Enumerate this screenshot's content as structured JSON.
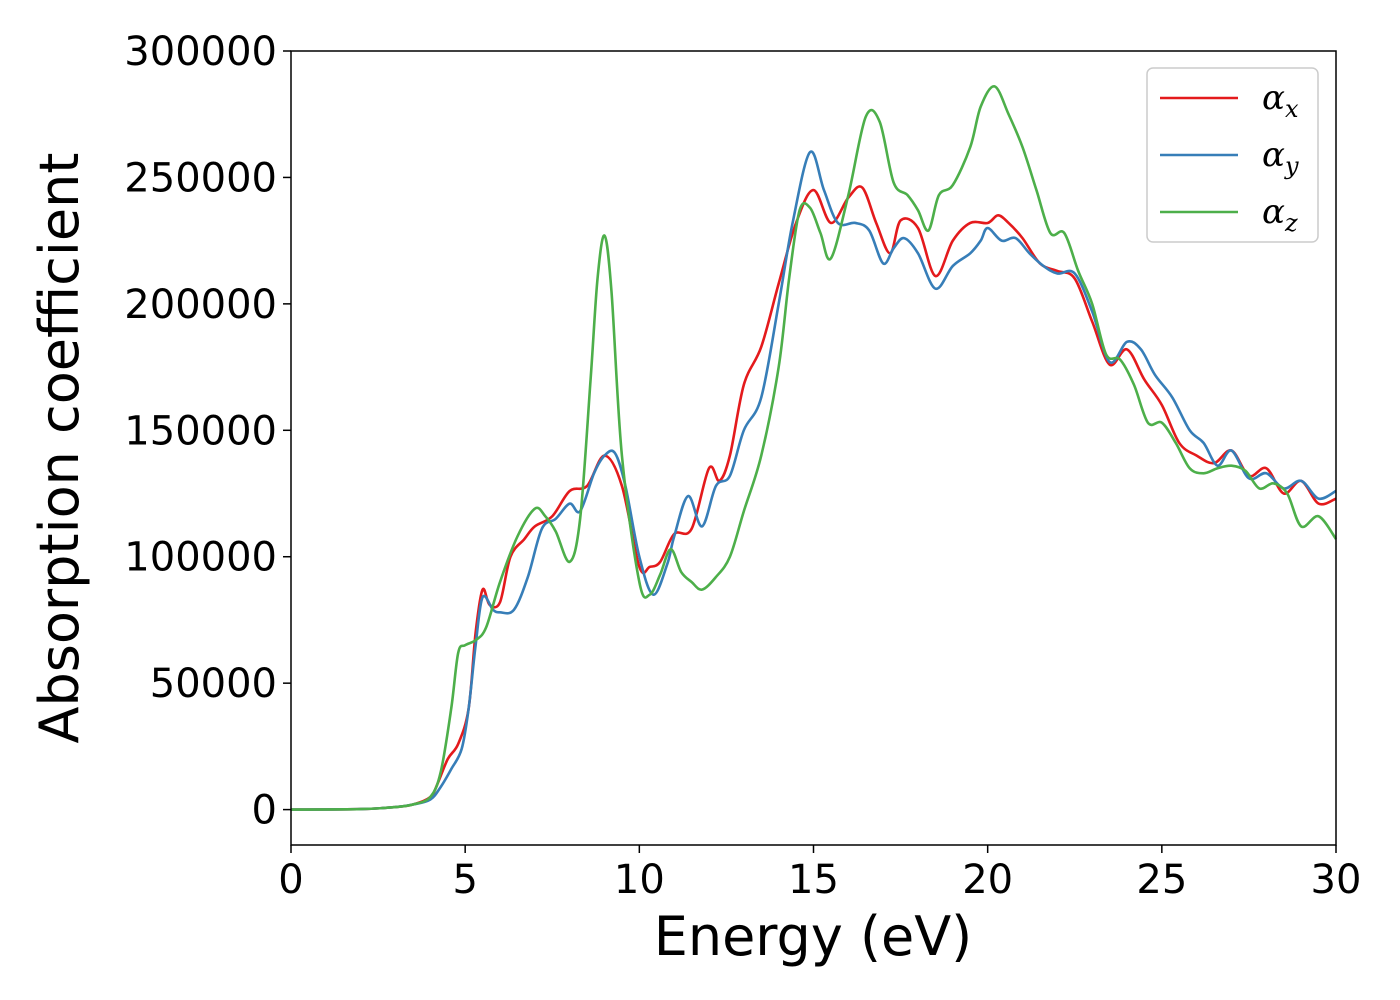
{
  "chart_data": {
    "type": "line",
    "title": "",
    "xlabel": "Energy (eV)",
    "ylabel": "Absorption coefficient",
    "xlim": [
      0,
      30
    ],
    "ylim": [
      -14000,
      300000
    ],
    "xticks": [
      0,
      5,
      10,
      15,
      20,
      25,
      30
    ],
    "yticks": [
      0,
      50000,
      100000,
      150000,
      200000,
      250000,
      300000
    ],
    "xtick_labels": [
      "0",
      "5",
      "10",
      "15",
      "20",
      "25",
      "30"
    ],
    "ytick_labels": [
      "0",
      "50000",
      "100000",
      "150000",
      "200000",
      "250000",
      "300000"
    ],
    "grid": false,
    "legend_position": "top-right",
    "series": [
      {
        "name": "α",
        "subscript": "x",
        "color": "#e41a1c",
        "x": [
          0,
          2,
          3,
          3.5,
          4,
          4.2,
          4.5,
          4.8,
          5.1,
          5.3,
          5.5,
          5.7,
          6.0,
          6.3,
          6.7,
          7.0,
          7.5,
          8.0,
          8.5,
          9.0,
          9.5,
          10.0,
          10.3,
          10.6,
          11.0,
          11.5,
          12.0,
          12.3,
          12.6,
          13.0,
          13.5,
          14.0,
          14.5,
          15.0,
          15.5,
          16.0,
          16.4,
          16.8,
          17.2,
          17.5,
          18.0,
          18.5,
          19.0,
          19.5,
          20.0,
          20.3,
          20.6,
          21.0,
          21.5,
          22.0,
          22.5,
          23.0,
          23.5,
          24.0,
          24.5,
          25.0,
          25.5,
          26.0,
          26.5,
          27.0,
          27.5,
          28.0,
          28.5,
          29.0,
          29.5,
          30.0
        ],
        "y": [
          0,
          200,
          1000,
          2000,
          5000,
          10000,
          20000,
          26000,
          40000,
          70000,
          87000,
          81000,
          82000,
          100000,
          107000,
          112000,
          116000,
          126000,
          128000,
          140000,
          128000,
          96000,
          96000,
          98000,
          109000,
          111000,
          135000,
          130000,
          140000,
          168000,
          183000,
          208000,
          232000,
          245000,
          232000,
          242000,
          246000,
          232000,
          220000,
          233000,
          230000,
          211000,
          225000,
          232000,
          232000,
          235000,
          232000,
          226000,
          216000,
          213000,
          210000,
          193000,
          176000,
          182000,
          170000,
          160000,
          145000,
          140000,
          137000,
          142000,
          132000,
          135000,
          125000,
          130000,
          121000,
          123000
        ]
      },
      {
        "name": "α",
        "subscript": "y",
        "color": "#377eb8",
        "x": [
          0,
          2,
          3,
          3.5,
          4,
          4.3,
          4.6,
          4.9,
          5.1,
          5.3,
          5.5,
          5.8,
          6.0,
          6.4,
          6.8,
          7.2,
          7.6,
          8.0,
          8.3,
          8.7,
          9.0,
          9.3,
          9.6,
          10.0,
          10.4,
          10.8,
          11.0,
          11.4,
          11.8,
          12.2,
          12.6,
          13.0,
          13.5,
          14.0,
          14.4,
          14.9,
          15.3,
          15.7,
          16.2,
          16.6,
          17.0,
          17.3,
          17.6,
          18.0,
          18.5,
          19.0,
          19.5,
          19.8,
          20.0,
          20.4,
          20.8,
          21.2,
          21.6,
          22.0,
          22.5,
          23.0,
          23.5,
          24.0,
          24.4,
          24.8,
          25.3,
          25.8,
          26.2,
          26.6,
          27.0,
          27.5,
          28.0,
          28.5,
          29.0,
          29.5,
          30.0
        ],
        "y": [
          0,
          200,
          1000,
          2000,
          4000,
          9000,
          16000,
          24000,
          40000,
          65000,
          84000,
          79000,
          78000,
          79000,
          92000,
          111000,
          115000,
          121000,
          118000,
          133000,
          140000,
          141000,
          128000,
          100000,
          85000,
          97000,
          108000,
          124000,
          112000,
          128000,
          132000,
          150000,
          163000,
          200000,
          232000,
          260000,
          245000,
          232000,
          232000,
          229000,
          216000,
          222000,
          226000,
          220000,
          206000,
          215000,
          220000,
          225000,
          230000,
          225000,
          226000,
          220000,
          215000,
          212000,
          212000,
          197000,
          177000,
          185000,
          182000,
          172000,
          163000,
          150000,
          145000,
          136000,
          142000,
          131000,
          133000,
          127000,
          130000,
          123000,
          126000
        ]
      },
      {
        "name": "α",
        "subscript": "z",
        "color": "#4daf4a",
        "x": [
          0,
          2,
          3,
          3.5,
          4,
          4.3,
          4.6,
          4.8,
          5.0,
          5.3,
          5.6,
          6.0,
          6.5,
          7.0,
          7.3,
          7.6,
          8.0,
          8.3,
          8.6,
          8.8,
          9.0,
          9.2,
          9.5,
          10.0,
          10.3,
          10.6,
          10.9,
          11.2,
          11.5,
          11.8,
          12.2,
          12.6,
          13.0,
          13.5,
          14.0,
          14.3,
          14.6,
          14.9,
          15.2,
          15.5,
          16.0,
          16.5,
          16.9,
          17.3,
          17.7,
          18.0,
          18.3,
          18.6,
          19.0,
          19.5,
          19.8,
          20.2,
          20.6,
          21.0,
          21.4,
          21.8,
          22.2,
          22.6,
          23.0,
          23.4,
          23.8,
          24.2,
          24.6,
          25.0,
          25.4,
          25.8,
          26.2,
          26.6,
          27.0,
          27.4,
          27.8,
          28.2,
          28.6,
          29.0,
          29.5,
          30.0
        ],
        "y": [
          0,
          200,
          1000,
          2000,
          5000,
          15000,
          40000,
          62000,
          65000,
          67000,
          72000,
          90000,
          108000,
          119000,
          116000,
          110000,
          98000,
          115000,
          170000,
          210000,
          227000,
          205000,
          140000,
          90000,
          85000,
          93000,
          103000,
          94000,
          90000,
          87000,
          92000,
          100000,
          118000,
          140000,
          175000,
          210000,
          237000,
          238000,
          228000,
          218000,
          243000,
          274000,
          272000,
          248000,
          243000,
          237000,
          229000,
          243000,
          247000,
          262000,
          278000,
          286000,
          275000,
          262000,
          245000,
          228000,
          228000,
          213000,
          200000,
          180000,
          178000,
          168000,
          153000,
          153000,
          145000,
          135000,
          133000,
          135000,
          136000,
          134000,
          127000,
          129000,
          125000,
          112000,
          116000,
          107000
        ]
      }
    ]
  }
}
